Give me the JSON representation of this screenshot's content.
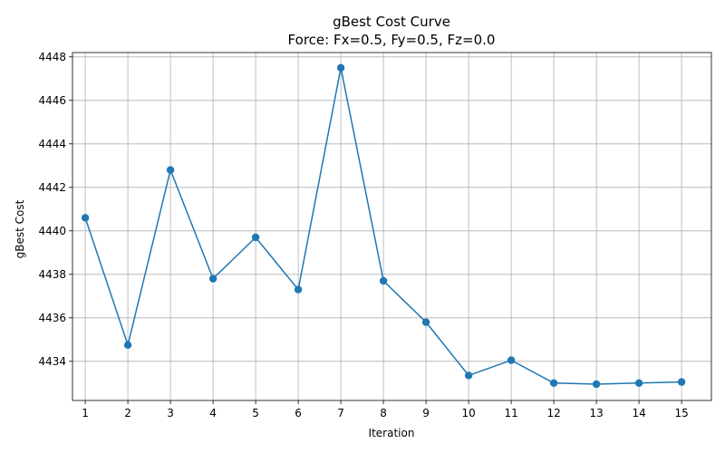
{
  "chart_data": {
    "type": "line",
    "title": "gBest Cost Curve",
    "subtitle": "Force: Fx=0.5, Fy=0.5, Fz=0.0",
    "xlabel": "Iteration",
    "ylabel": "gBest Cost",
    "x": [
      1,
      2,
      3,
      4,
      5,
      6,
      7,
      8,
      9,
      10,
      11,
      12,
      13,
      14,
      15
    ],
    "series": [
      {
        "values": [
          4440.6,
          4434.75,
          4442.8,
          4437.8,
          4439.7,
          4437.3,
          4447.5,
          4437.7,
          4435.8,
          4433.35,
          4434.05,
          4433.0,
          4432.95,
          4433.0,
          4433.05
        ],
        "color": "#1f77b4"
      }
    ],
    "xlim": [
      0.7,
      15.7
    ],
    "ylim": [
      4432.2,
      4448.2
    ],
    "yticks": [
      4434,
      4436,
      4438,
      4440,
      4442,
      4444,
      4446,
      4448
    ],
    "xticks": [
      1,
      2,
      3,
      4,
      5,
      6,
      7,
      8,
      9,
      10,
      11,
      12,
      13,
      14,
      15
    ],
    "grid": true,
    "legend": false
  }
}
